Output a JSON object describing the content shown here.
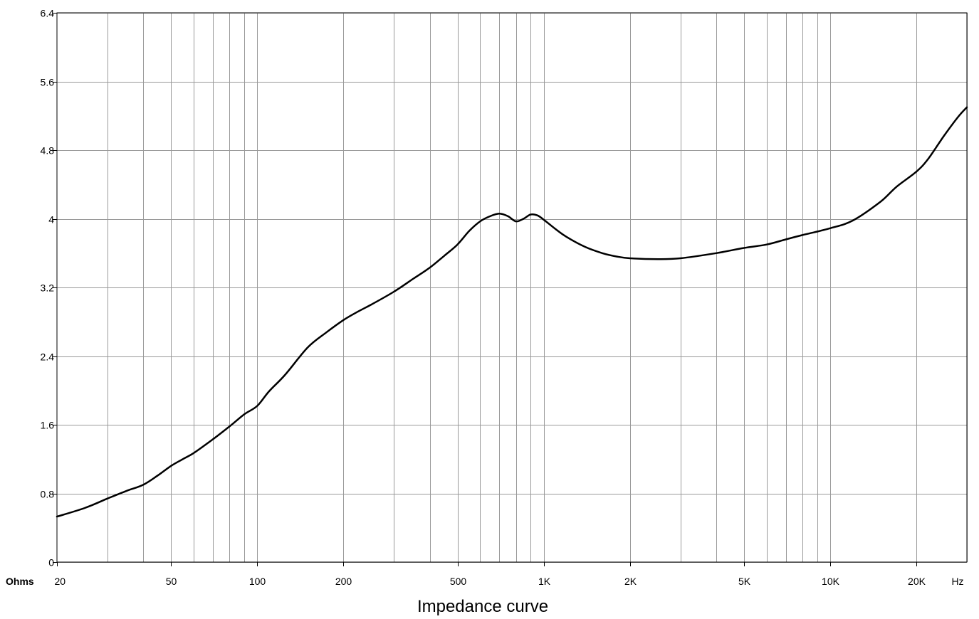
{
  "chart_data": {
    "type": "line",
    "title": "",
    "caption": "Impedance curve",
    "x_scale": "log",
    "xlim": [
      20,
      30000
    ],
    "ylim": [
      0,
      6.4
    ],
    "y_unit": "Ohms",
    "x_unit": "Hz",
    "grid": true,
    "y_ticks": [
      {
        "value": 0,
        "label": "0"
      },
      {
        "value": 0.8,
        "label": "0.8"
      },
      {
        "value": 1.6,
        "label": "1.6"
      },
      {
        "value": 2.4,
        "label": "2.4"
      },
      {
        "value": 3.2,
        "label": "3.2"
      },
      {
        "value": 4,
        "label": "4"
      },
      {
        "value": 4.8,
        "label": "4.8"
      },
      {
        "value": 5.6,
        "label": "5.6"
      },
      {
        "value": 6.4,
        "label": "6.4"
      }
    ],
    "x_ticks": [
      {
        "value": 20,
        "label": "20"
      },
      {
        "value": 50,
        "label": "50"
      },
      {
        "value": 100,
        "label": "100"
      },
      {
        "value": 200,
        "label": "200"
      },
      {
        "value": 500,
        "label": "500"
      },
      {
        "value": 1000,
        "label": "1K"
      },
      {
        "value": 2000,
        "label": "2K"
      },
      {
        "value": 5000,
        "label": "5K"
      },
      {
        "value": 10000,
        "label": "10K"
      },
      {
        "value": 20000,
        "label": "20K"
      }
    ],
    "x_gridlines": [
      30,
      40,
      50,
      60,
      70,
      80,
      90,
      100,
      200,
      300,
      400,
      500,
      600,
      700,
      800,
      900,
      1000,
      2000,
      3000,
      4000,
      5000,
      6000,
      7000,
      8000,
      9000,
      10000,
      20000,
      30000
    ],
    "series": [
      {
        "color": "#000000",
        "x": [
          20,
          25,
          30,
          35,
          40,
          45,
          50,
          55,
          60,
          70,
          80,
          90,
          100,
          110,
          125,
          150,
          175,
          200,
          225,
          250,
          300,
          350,
          400,
          450,
          500,
          550,
          600,
          650,
          700,
          750,
          800,
          850,
          900,
          950,
          1000,
          1100,
          1200,
          1400,
          1600,
          1800,
          2000,
          2500,
          3000,
          4000,
          5000,
          6000,
          7000,
          8000,
          10000,
          12000,
          15000,
          17000,
          20000,
          22000,
          25000,
          28000,
          30000
        ],
        "y": [
          0.53,
          0.63,
          0.74,
          0.83,
          0.9,
          1.01,
          1.12,
          1.2,
          1.27,
          1.43,
          1.58,
          1.72,
          1.82,
          1.99,
          2.18,
          2.5,
          2.68,
          2.82,
          2.92,
          3.0,
          3.15,
          3.3,
          3.43,
          3.57,
          3.7,
          3.86,
          3.97,
          4.03,
          4.06,
          4.03,
          3.97,
          4.0,
          4.05,
          4.04,
          3.99,
          3.88,
          3.79,
          3.67,
          3.6,
          3.56,
          3.54,
          3.53,
          3.54,
          3.6,
          3.66,
          3.7,
          3.76,
          3.81,
          3.89,
          3.98,
          4.2,
          4.37,
          4.55,
          4.7,
          4.97,
          5.19,
          5.3
        ]
      }
    ]
  }
}
